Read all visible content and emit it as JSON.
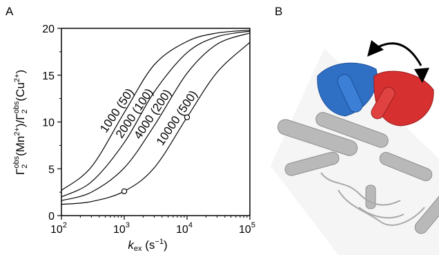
{
  "panels": {
    "a": "A",
    "b": "B"
  },
  "chart_data": {
    "type": "line",
    "xscale": "log",
    "xlim": [
      100,
      100000
    ],
    "ylim": [
      0,
      20
    ],
    "xticks": [
      100,
      1000,
      10000,
      100000
    ],
    "xtick_labels": [
      {
        "base": "10",
        "exp": "2"
      },
      {
        "base": "10",
        "exp": "3"
      },
      {
        "base": "10",
        "exp": "4"
      },
      {
        "base": "10",
        "exp": "5"
      }
    ],
    "yticks": [
      0,
      5,
      10,
      15,
      20
    ],
    "ytick_labels": [
      "0",
      "5",
      "10",
      "15",
      "20"
    ],
    "xlabel": {
      "main": "k",
      "sub": "ex",
      "unit": " (s",
      "unit_exp": "−1",
      "close": ")"
    },
    "ylabel": {
      "p1": "Γ",
      "p1_sub": "2",
      "p1_sup": "obs",
      "p2": "(Mn",
      "p2_sup": "2+",
      "p3": ")/Γ",
      "p4_sub": "2",
      "p4_sup": "obs",
      "p5": "(Cu",
      "p5_sup": "2+",
      "p6": ")"
    },
    "series": [
      {
        "label": "1000 (50)",
        "x": [
          100,
          300,
          1000,
          3000,
          10000,
          30000,
          100000
        ],
        "y": [
          2.7,
          5.2,
          11.0,
          16.1,
          18.6,
          19.5,
          19.8
        ]
      },
      {
        "label": "2000 (100)",
        "x": [
          100,
          300,
          1000,
          3000,
          10000,
          30000,
          100000
        ],
        "y": [
          2.0,
          3.6,
          7.8,
          13.2,
          17.4,
          19.1,
          19.7
        ]
      },
      {
        "label": "4000 (200)",
        "x": [
          100,
          300,
          1000,
          3000,
          10000,
          30000,
          100000
        ],
        "y": [
          1.6,
          2.5,
          5.1,
          9.6,
          15.2,
          18.3,
          19.5
        ]
      },
      {
        "label": "10000 (500)",
        "x": [
          100,
          300,
          1000,
          3000,
          10000,
          30000,
          100000
        ],
        "y": [
          1.2,
          1.5,
          2.6,
          5.1,
          10.5,
          15.3,
          18.5
        ]
      }
    ],
    "markers": [
      {
        "x": 1000,
        "y": 2.6
      },
      {
        "x": 10000,
        "y": 10.5
      }
    ]
  }
}
